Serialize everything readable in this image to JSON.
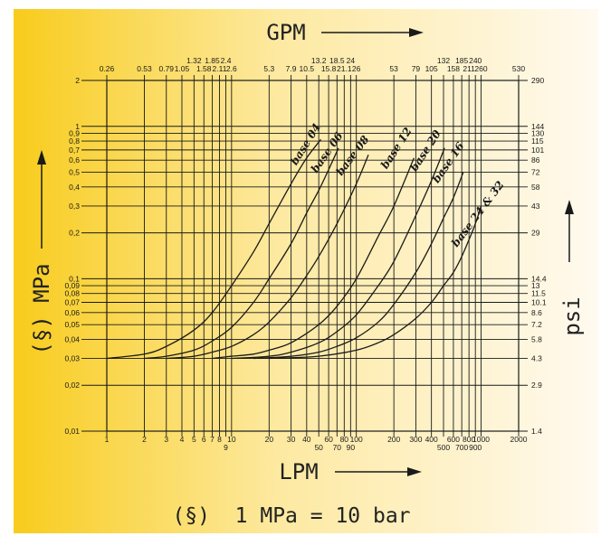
{
  "colors": {
    "gradient_start": "#f8cc1c",
    "gradient_mid": "#fde9a0",
    "gradient_end": "#fffaf0",
    "ink": "#1a1a1a"
  },
  "chart_data": {
    "type": "line",
    "x_scale": "log",
    "y_scale": "log",
    "xlim": [
      1,
      2000
    ],
    "ylim": [
      0.01,
      2
    ],
    "xlabel": "LPM",
    "x2label": "GPM",
    "ylabel": "(§) MPa",
    "y2label": "psi",
    "footnote": "(§)  1 MPa = 10 bar",
    "x_ticks": [
      {
        "v": 1,
        "t": "1"
      },
      {
        "v": 2,
        "t": "2"
      },
      {
        "v": 3,
        "t": "3"
      },
      {
        "v": 4,
        "t": "4"
      },
      {
        "v": 5,
        "t": "5"
      },
      {
        "v": 6,
        "t": "6"
      },
      {
        "v": 7,
        "t": "7"
      },
      {
        "v": 8,
        "t": "8"
      },
      {
        "v": 9,
        "t": "9",
        "low": true
      },
      {
        "v": 10,
        "t": "10"
      },
      {
        "v": 20,
        "t": "20"
      },
      {
        "v": 30,
        "t": "30"
      },
      {
        "v": 40,
        "t": "40"
      },
      {
        "v": 50,
        "t": "50",
        "low": true
      },
      {
        "v": 60,
        "t": "60"
      },
      {
        "v": 70,
        "t": "70",
        "low": true
      },
      {
        "v": 80,
        "t": "80"
      },
      {
        "v": 90,
        "t": "90",
        "low": true
      },
      {
        "v": 100,
        "t": "100"
      },
      {
        "v": 200,
        "t": "200"
      },
      {
        "v": 300,
        "t": "300"
      },
      {
        "v": 400,
        "t": "400"
      },
      {
        "v": 500,
        "t": "500",
        "low": true
      },
      {
        "v": 600,
        "t": "600"
      },
      {
        "v": 700,
        "t": "700",
        "low": true
      },
      {
        "v": 800,
        "t": "800"
      },
      {
        "v": 900,
        "t": "900",
        "low": true
      },
      {
        "v": 1000,
        "t": "1000"
      },
      {
        "v": 2000,
        "t": "2000"
      }
    ],
    "gpm_ticks": [
      {
        "v": 1,
        "t": "0.26"
      },
      {
        "v": 2,
        "t": "0.53"
      },
      {
        "v": 3,
        "t": "0.79"
      },
      {
        "v": 4,
        "t": "1.05"
      },
      {
        "v": 5,
        "t": "1.32",
        "high": true
      },
      {
        "v": 6,
        "t": "1.58"
      },
      {
        "v": 7,
        "t": "1.85",
        "high": true
      },
      {
        "v": 8,
        "t": "2.11"
      },
      {
        "v": 9,
        "t": "2.4",
        "high": true
      },
      {
        "v": 10,
        "t": "2.6"
      },
      {
        "v": 20,
        "t": "5.3"
      },
      {
        "v": 30,
        "t": "7.9"
      },
      {
        "v": 40,
        "t": "10.5"
      },
      {
        "v": 50,
        "t": "13.2",
        "high": true
      },
      {
        "v": 60,
        "t": "15.8"
      },
      {
        "v": 70,
        "t": "18.5",
        "high": true
      },
      {
        "v": 80,
        "t": "21.1"
      },
      {
        "v": 90,
        "t": "24",
        "high": true
      },
      {
        "v": 100,
        "t": "26"
      },
      {
        "v": 200,
        "t": "53"
      },
      {
        "v": 300,
        "t": "79"
      },
      {
        "v": 400,
        "t": "105"
      },
      {
        "v": 500,
        "t": "132",
        "high": true
      },
      {
        "v": 600,
        "t": "158"
      },
      {
        "v": 700,
        "t": "185",
        "high": true
      },
      {
        "v": 800,
        "t": "211"
      },
      {
        "v": 900,
        "t": "240",
        "high": true
      },
      {
        "v": 1000,
        "t": "260"
      },
      {
        "v": 2000,
        "t": "530"
      }
    ],
    "y_ticks": [
      {
        "v": 0.01,
        "t": "0,01"
      },
      {
        "v": 0.02,
        "t": "0,02"
      },
      {
        "v": 0.03,
        "t": "0,03"
      },
      {
        "v": 0.04,
        "t": "0,04"
      },
      {
        "v": 0.05,
        "t": "0,05"
      },
      {
        "v": 0.06,
        "t": "0,06"
      },
      {
        "v": 0.07,
        "t": "0,07"
      },
      {
        "v": 0.08,
        "t": "0,08"
      },
      {
        "v": 0.09,
        "t": "0,09"
      },
      {
        "v": 0.1,
        "t": "0,1"
      },
      {
        "v": 0.2,
        "t": "0,2"
      },
      {
        "v": 0.3,
        "t": "0,3"
      },
      {
        "v": 0.4,
        "t": "0,4"
      },
      {
        "v": 0.5,
        "t": "0,5"
      },
      {
        "v": 0.6,
        "t": "0,6"
      },
      {
        "v": 0.7,
        "t": "0,7"
      },
      {
        "v": 0.8,
        "t": "0,8"
      },
      {
        "v": 0.9,
        "t": "0,9"
      },
      {
        "v": 1,
        "t": "1"
      },
      {
        "v": 2,
        "t": "2"
      }
    ],
    "psi_ticks": [
      {
        "v": 0.01,
        "t": "1.4"
      },
      {
        "v": 0.02,
        "t": "2.9"
      },
      {
        "v": 0.03,
        "t": "4.3"
      },
      {
        "v": 0.04,
        "t": "5.8"
      },
      {
        "v": 0.05,
        "t": "7.2"
      },
      {
        "v": 0.06,
        "t": "8.6"
      },
      {
        "v": 0.07,
        "t": "10.1"
      },
      {
        "v": 0.08,
        "t": "11.5"
      },
      {
        "v": 0.09,
        "t": "13"
      },
      {
        "v": 0.1,
        "t": "14.4"
      },
      {
        "v": 0.2,
        "t": "29"
      },
      {
        "v": 0.3,
        "t": "43"
      },
      {
        "v": 0.4,
        "t": "58"
      },
      {
        "v": 0.5,
        "t": "72"
      },
      {
        "v": 0.6,
        "t": "86"
      },
      {
        "v": 0.7,
        "t": "101"
      },
      {
        "v": 0.8,
        "t": "115"
      },
      {
        "v": 0.9,
        "t": "130"
      },
      {
        "v": 1,
        "t": "144"
      },
      {
        "v": 2,
        "t": "290"
      }
    ],
    "series": [
      {
        "name": "base 04",
        "x": [
          1,
          2,
          3,
          5,
          7,
          10,
          15,
          20,
          30,
          40,
          52
        ],
        "y": [
          0.03,
          0.032,
          0.036,
          0.046,
          0.06,
          0.09,
          0.15,
          0.23,
          0.42,
          0.62,
          0.82
        ]
      },
      {
        "name": "base 06",
        "x": [
          2,
          3,
          5,
          7,
          10,
          15,
          20,
          30,
          40,
          50,
          60,
          72
        ],
        "y": [
          0.03,
          0.031,
          0.034,
          0.039,
          0.048,
          0.07,
          0.1,
          0.17,
          0.27,
          0.38,
          0.52,
          0.72
        ]
      },
      {
        "name": "base 08",
        "x": [
          3,
          5,
          7,
          10,
          15,
          20,
          30,
          40,
          50,
          70,
          100,
          125
        ],
        "y": [
          0.03,
          0.031,
          0.033,
          0.036,
          0.043,
          0.052,
          0.075,
          0.105,
          0.14,
          0.23,
          0.42,
          0.65
        ]
      },
      {
        "name": "base 12",
        "x": [
          7,
          10,
          15,
          20,
          30,
          50,
          70,
          100,
          150,
          200,
          290
        ],
        "y": [
          0.03,
          0.031,
          0.032,
          0.034,
          0.038,
          0.05,
          0.066,
          0.1,
          0.19,
          0.3,
          0.62
        ]
      },
      {
        "name": "base 20",
        "x": [
          10,
          20,
          30,
          50,
          70,
          100,
          150,
          200,
          300,
          400,
          510
        ],
        "y": [
          0.03,
          0.031,
          0.033,
          0.038,
          0.045,
          0.058,
          0.09,
          0.13,
          0.26,
          0.44,
          0.72
        ]
      },
      {
        "name": "base 16",
        "x": [
          15,
          30,
          50,
          70,
          100,
          150,
          200,
          300,
          400,
          500,
          600,
          720
        ],
        "y": [
          0.03,
          0.031,
          0.033,
          0.036,
          0.041,
          0.052,
          0.068,
          0.11,
          0.17,
          0.25,
          0.34,
          0.5
        ]
      },
      {
        "name": "base 24 & 32",
        "x": [
          20,
          50,
          100,
          150,
          200,
          300,
          400,
          500,
          600,
          700,
          800,
          900,
          1000
        ],
        "y": [
          0.03,
          0.031,
          0.034,
          0.038,
          0.043,
          0.055,
          0.07,
          0.09,
          0.11,
          0.14,
          0.18,
          0.23,
          0.3
        ]
      }
    ],
    "series_labels": [
      {
        "text": "base 04",
        "x": 33,
        "y": 0.55,
        "angle": -58
      },
      {
        "text": "base 06",
        "x": 48,
        "y": 0.49,
        "angle": -55
      },
      {
        "text": "base 08",
        "x": 76,
        "y": 0.47,
        "angle": -53
      },
      {
        "text": "base 12",
        "x": 175,
        "y": 0.52,
        "angle": -57
      },
      {
        "text": "base 20",
        "x": 300,
        "y": 0.5,
        "angle": -57
      },
      {
        "text": "base 16",
        "x": 450,
        "y": 0.42,
        "angle": -55
      },
      {
        "text": "base 24 & 32",
        "x": 640,
        "y": 0.16,
        "angle": -53
      }
    ]
  }
}
